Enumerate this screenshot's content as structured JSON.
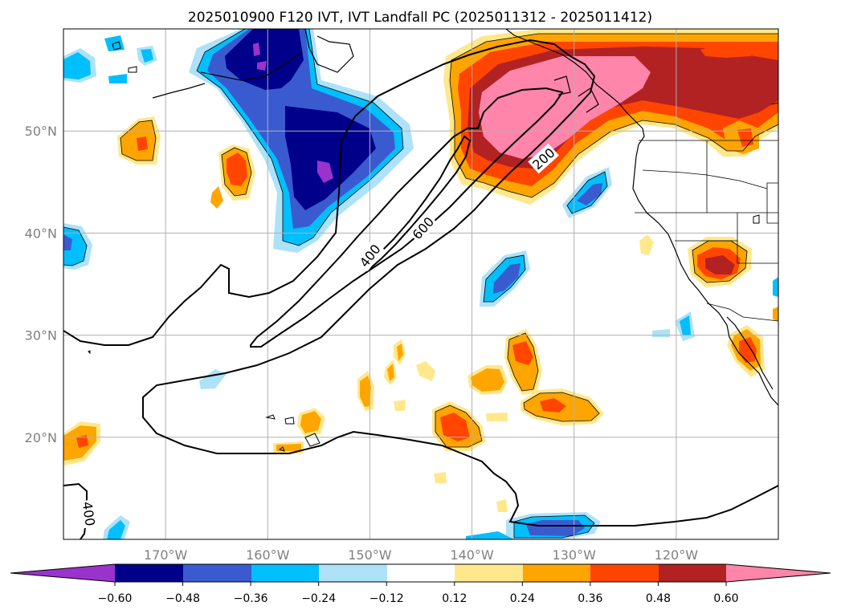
{
  "title": "2025010900 F120 IVT, IVT Landfall PC (2025011312 - 2025011412)",
  "map": {
    "lon_range": [
      -180,
      -110
    ],
    "lat_range": [
      10,
      60
    ],
    "lon_ticks": [
      {
        "lon": -170,
        "label": "170°W"
      },
      {
        "lon": -160,
        "label": "160°W"
      },
      {
        "lon": -150,
        "label": "150°W"
      },
      {
        "lon": -140,
        "label": "140°W"
      },
      {
        "lon": -130,
        "label": "130°W"
      },
      {
        "lon": -120,
        "label": "120°W"
      }
    ],
    "lat_ticks": [
      {
        "lat": 20,
        "label": "20°N"
      },
      {
        "lat": 30,
        "label": "30°N"
      },
      {
        "lat": 40,
        "label": "40°N"
      },
      {
        "lat": 50,
        "label": "50°N"
      }
    ],
    "grid": true,
    "contour_labels": [
      {
        "lon": -150,
        "lat": 37.8,
        "label": "400",
        "angle": -52
      },
      {
        "lon": -144.8,
        "lat": 40.5,
        "label": "600",
        "angle": -48
      },
      {
        "lon": -177.5,
        "lat": 12.5,
        "label": "400",
        "angle": 82
      },
      {
        "lon": -133,
        "lat": 47.3,
        "label": "200",
        "angle": -42
      }
    ]
  },
  "colorbar": {
    "ticks": [
      "−0.60",
      "−0.48",
      "−0.36",
      "−0.24",
      "−0.12",
      "0.12",
      "0.24",
      "0.36",
      "0.48",
      "0.60"
    ],
    "colors": {
      "neg_extend": "#9933cc",
      "neg60": "#00008b",
      "neg48": "#3a5bd0",
      "neg36": "#00bfff",
      "neg24": "#ade2f9",
      "zero": "#ffffff",
      "pos12": "#ffe88c",
      "pos24": "#ffa500",
      "pos36": "#ff4500",
      "pos48": "#b22222",
      "pos_extend": "#ff85aa"
    }
  }
}
